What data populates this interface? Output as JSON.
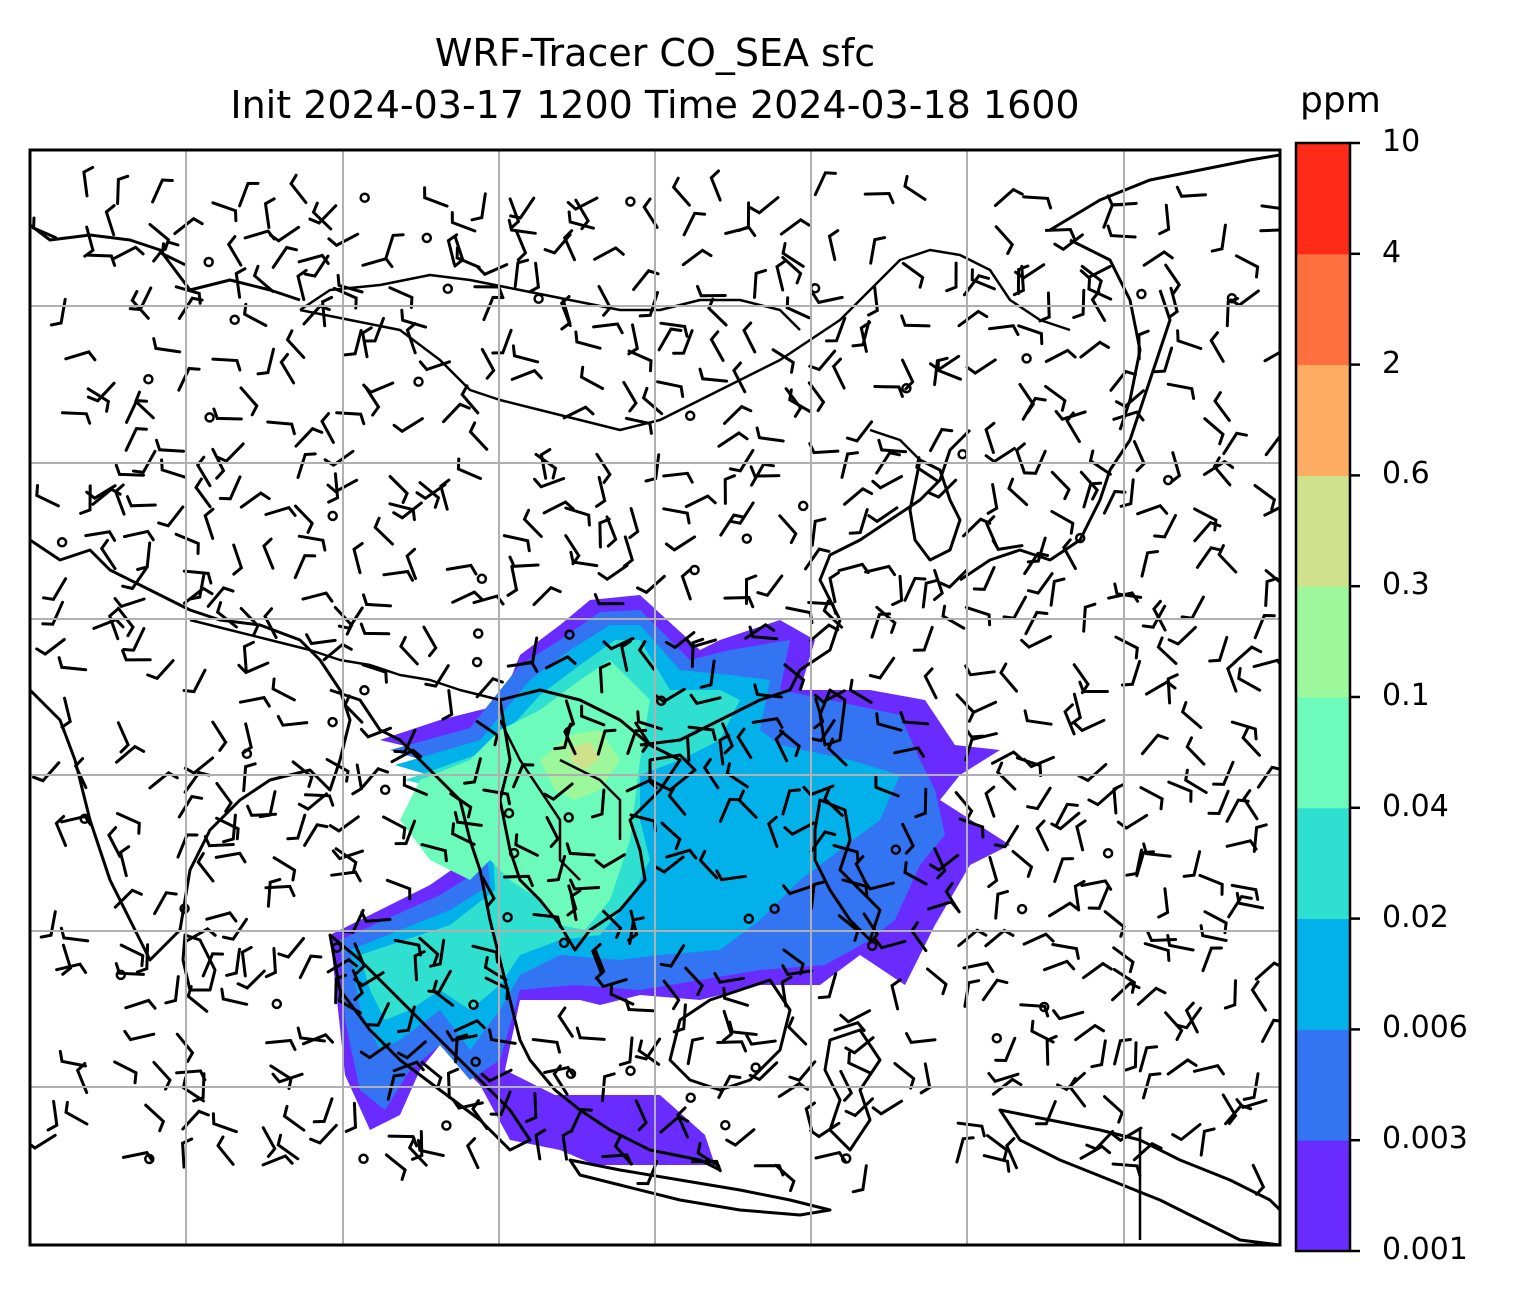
{
  "title": {
    "line1": "WRF-Tracer CO_SEA sfc",
    "line2": "Init 2024-03-17 1200 Time 2024-03-18 1600"
  },
  "colorbar": {
    "unit": "ppm",
    "levels": [
      "0.001",
      "0.003",
      "0.006",
      "0.02",
      "0.04",
      "0.1",
      "0.3",
      "0.6",
      "2",
      "4",
      "10"
    ],
    "colors": [
      "#6a2bff",
      "#3374f2",
      "#02b0ea",
      "#2fdfd0",
      "#6cfbbb",
      "#9cf89a",
      "#cfe18a",
      "#fdac61",
      "#ff7040",
      "#ff2b18"
    ]
  },
  "map": {
    "frame": "black",
    "gridlines": "#b0b0b0",
    "features": [
      "coastlines",
      "country-borders",
      "wind-barbs",
      "calm-wind-circles",
      "CO tracer concentration fill"
    ]
  }
}
